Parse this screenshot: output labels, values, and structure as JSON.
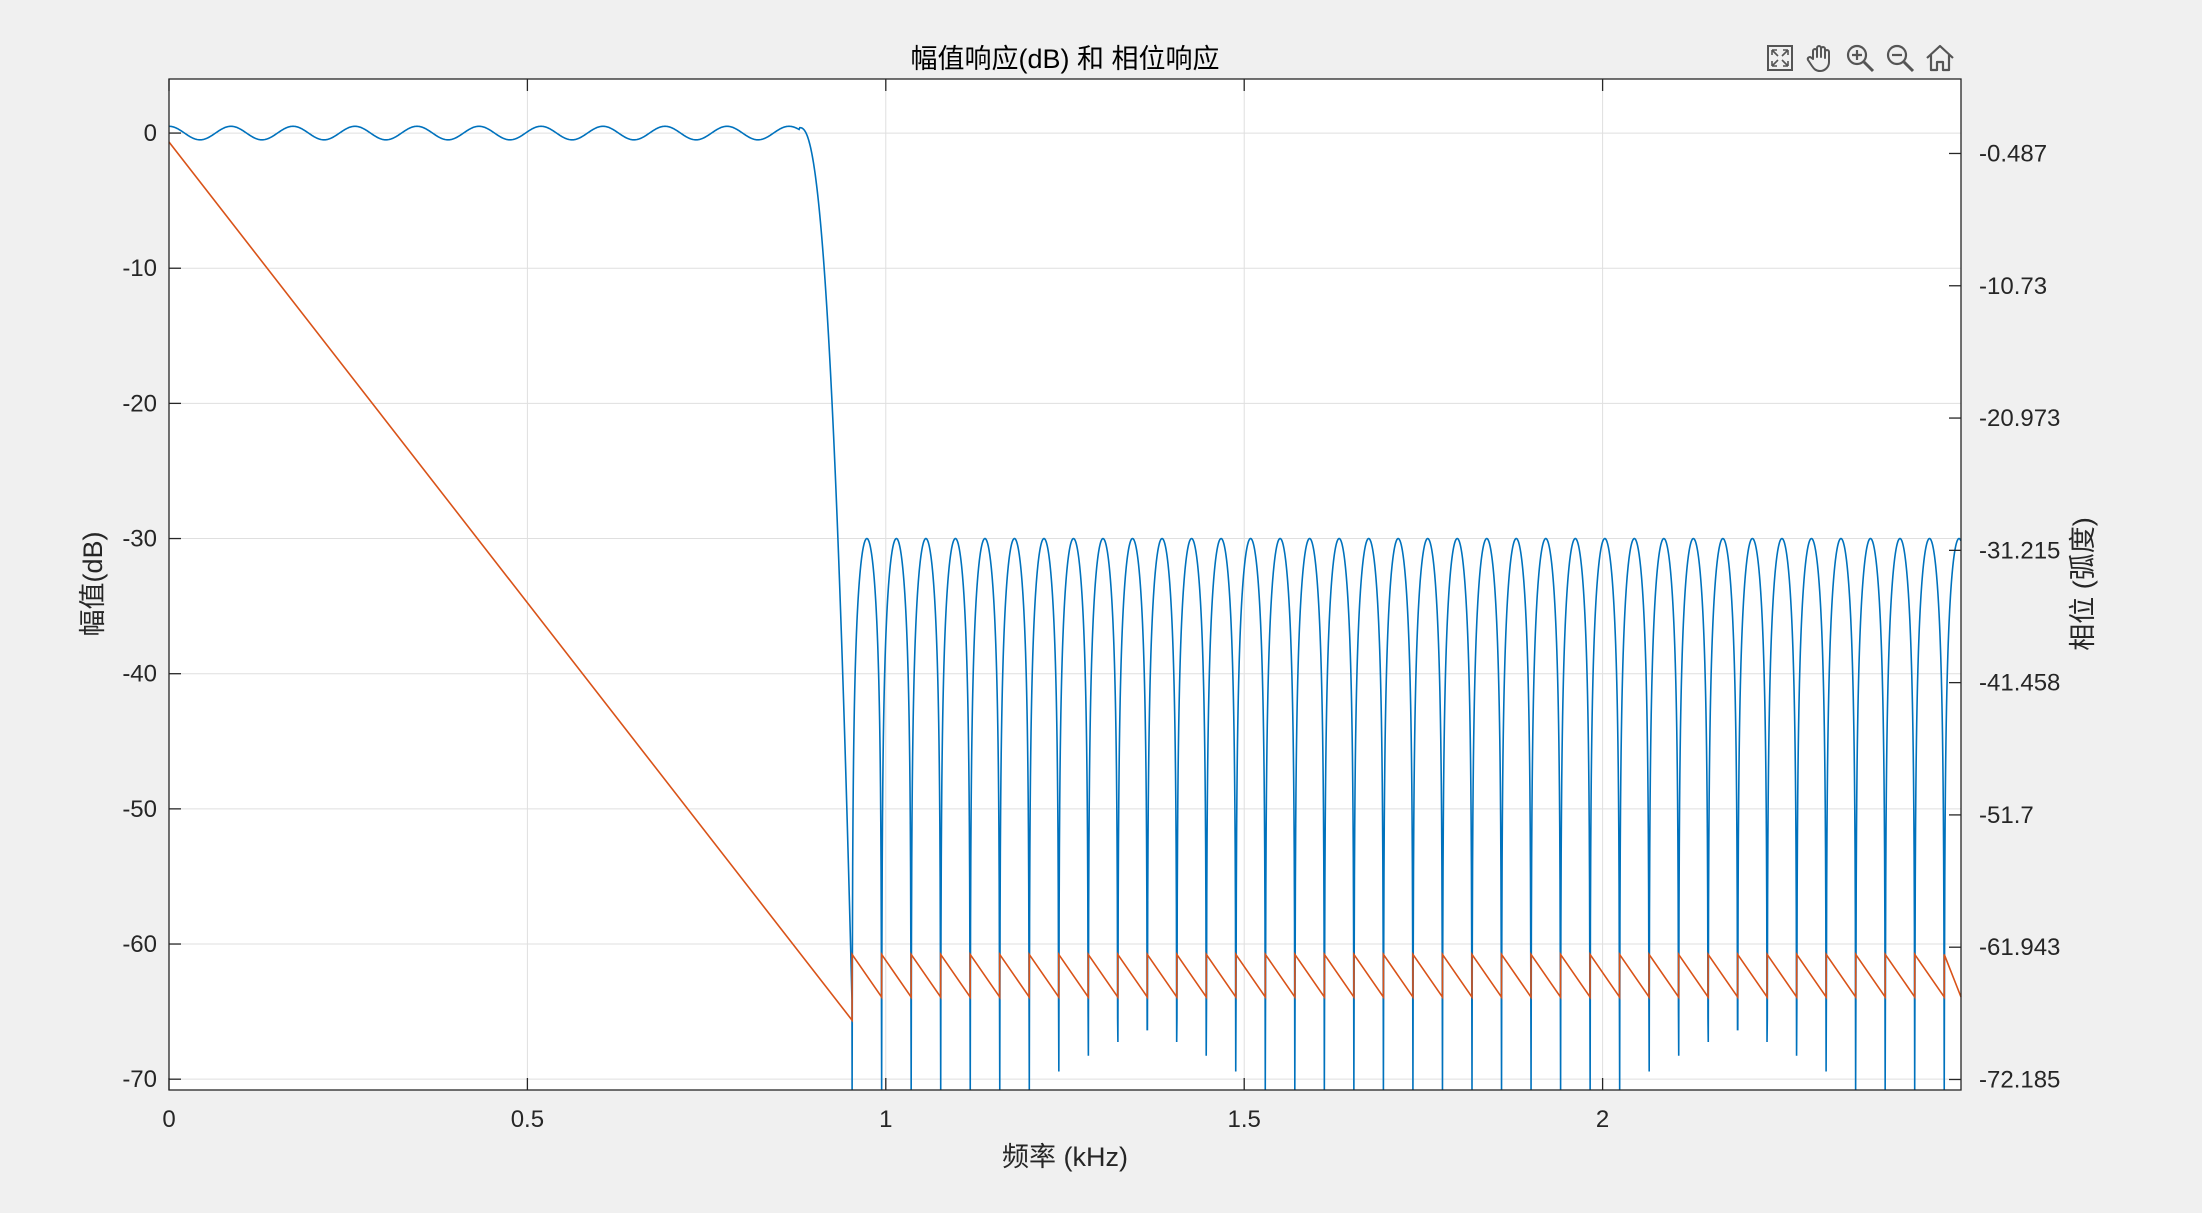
{
  "window": {
    "background": "#f0f0f0",
    "toolbar": [
      {
        "id": "zoom-fit",
        "icon": "fit-to-window-icon"
      },
      {
        "id": "pan",
        "icon": "hand-pan-icon"
      },
      {
        "id": "zoom-in",
        "icon": "zoom-in-icon"
      },
      {
        "id": "zoom-out",
        "icon": "zoom-out-icon"
      },
      {
        "id": "home",
        "icon": "home-icon"
      }
    ]
  },
  "chart_data": {
    "type": "line",
    "title": "幅值响应(dB) 和 相位响应",
    "xlabel": "频率 (kHz)",
    "ylabel_left": "幅值(dB)",
    "ylabel_right": "相位 (弧度)",
    "xlim": [
      0,
      2.5
    ],
    "ylim_left": [
      -70.8,
      4
    ],
    "ylim_right": [
      -72.999,
      5.279
    ],
    "x_ticks": [
      0,
      0.5,
      1,
      1.5,
      2
    ],
    "x_tick_labels": [
      "0",
      "0.5",
      "1",
      "1.5",
      "2"
    ],
    "y_ticks_left": [
      0,
      -10,
      -20,
      -30,
      -40,
      -50,
      -60,
      -70
    ],
    "y_tick_labels_left": [
      "0",
      "-10",
      "-20",
      "-30",
      "-40",
      "-50",
      "-60",
      "-70"
    ],
    "y_ticks_right": [
      -0.487,
      -10.73,
      -20.973,
      -31.215,
      -41.458,
      -51.7,
      -61.943,
      -72.185
    ],
    "y_tick_labels_right": [
      "-0.487",
      "-10.73",
      "-20.973",
      "-31.215",
      "-41.458",
      "-51.7",
      "-61.943",
      "-72.185"
    ],
    "grid": true,
    "series": [
      {
        "axis": "left",
        "color": "#0072bd",
        "passband": {
          "x_end": 0.88,
          "ripple_dB": 0.5,
          "ripple_period": 0.0865
        },
        "transition": {
          "x_start": 0.88,
          "x_end": 0.953
        },
        "stopband": {
          "x_start": 0.953,
          "x_end": 2.5,
          "peak_dB": -30,
          "lobe_width": 0.04118
        }
      },
      {
        "axis": "right",
        "color": "#d95319",
        "linear_phase": {
          "x_start": 0,
          "y_start": 0.4,
          "x_end": 0.953,
          "y_end": -67.6
        },
        "stopband_sawtooth": {
          "x_start": 0.953,
          "y_high": -62.5,
          "y_low": -65.8
        }
      }
    ]
  }
}
